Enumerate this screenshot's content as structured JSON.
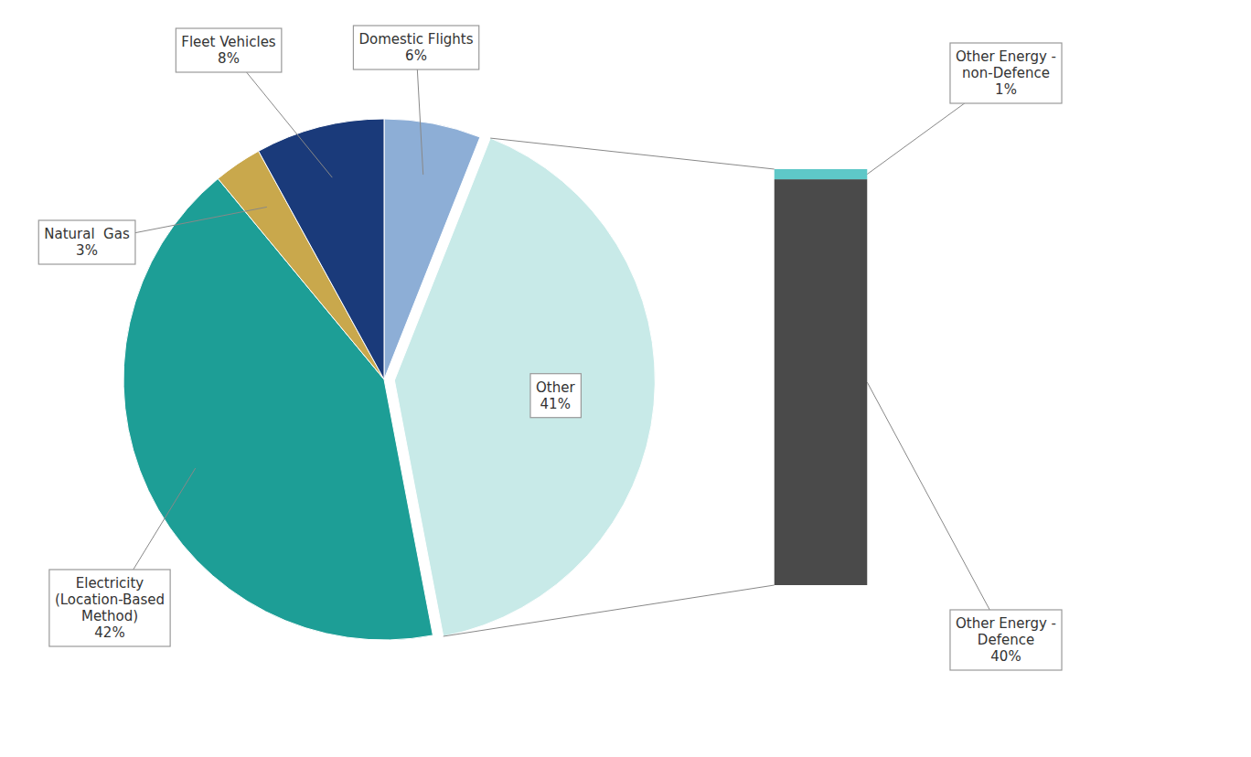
{
  "chart_data": [
    {
      "type": "pie",
      "categories": [
        "Domestic Flights",
        "Other",
        "Electricity\n(Location-Based\nMethod)",
        "Natural  Gas",
        "Fleet Vehicles"
      ],
      "values": [
        6,
        41,
        42,
        3,
        8
      ],
      "value_labels": [
        "6%",
        "41%",
        "42%",
        "3%",
        "8%"
      ],
      "colors": [
        "#8daed6",
        "#c8eae8",
        "#1d9e96",
        "#c9a84c",
        "#1a3a7a"
      ],
      "data_labels": true
    },
    {
      "type": "bar",
      "stacked": true,
      "categories": [
        null
      ],
      "series": [
        {
          "name": "Other Energy -\nDefence",
          "color": "#4a4a4a",
          "values": [
            40
          ],
          "value_labels": [
            "40%"
          ]
        },
        {
          "name": "Other Energy -\nnon-Defence",
          "color": "#5ec8c8",
          "values": [
            1
          ],
          "value_labels": [
            "1%"
          ]
        }
      ],
      "ylim": [
        0,
        41
      ],
      "tick_labels": false,
      "data_labels": true
    }
  ]
}
